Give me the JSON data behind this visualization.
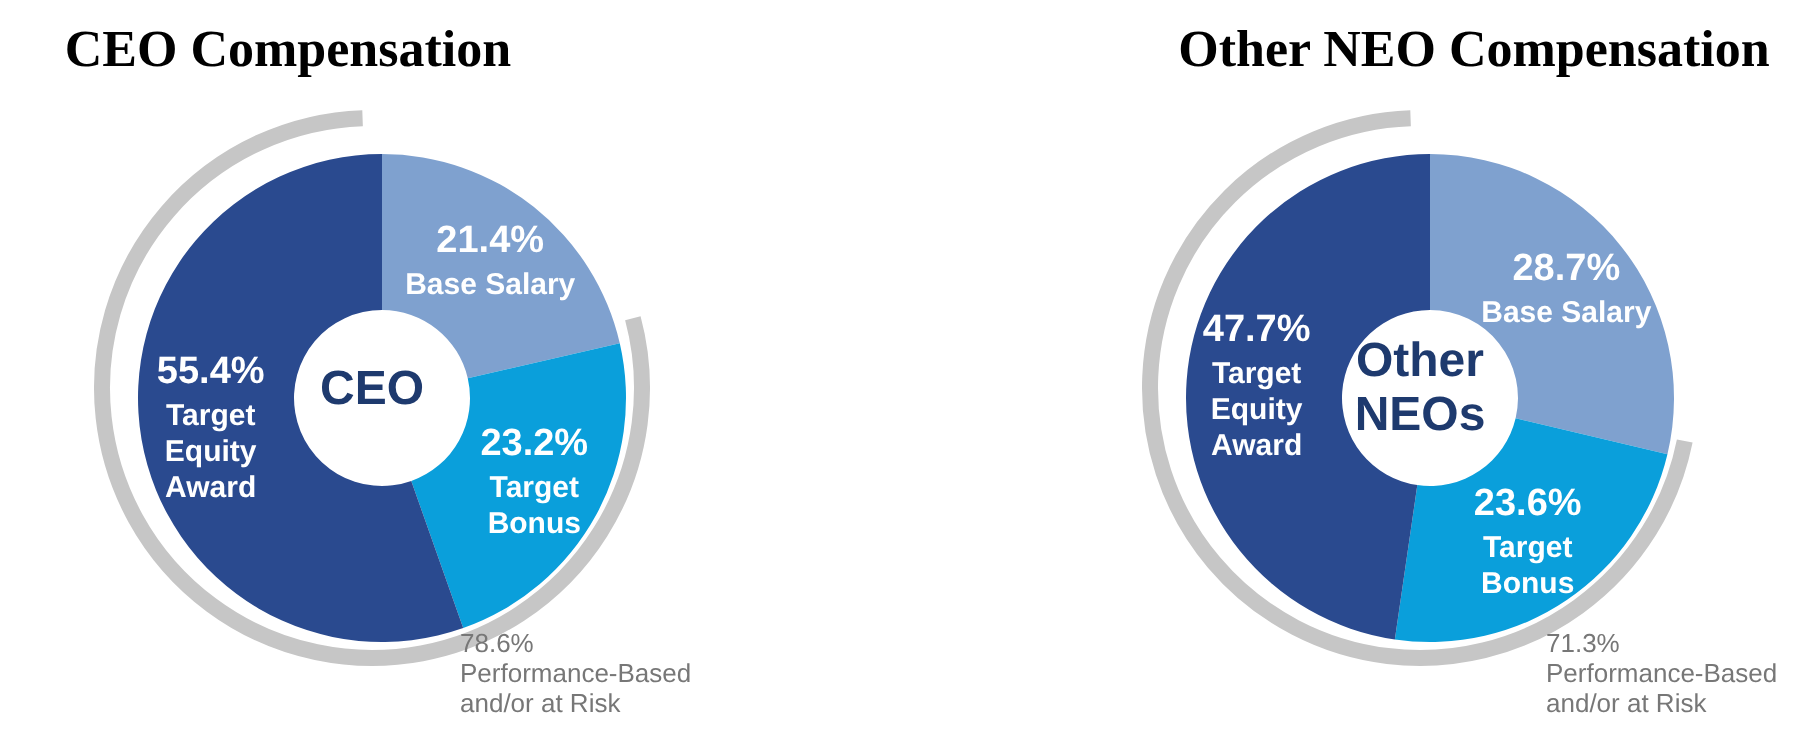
{
  "chart_data": [
    {
      "type": "donut",
      "title": "CEO Compensation",
      "categories": [
        "Base Salary",
        "Target Bonus",
        "Target Equity Award"
      ],
      "values": [
        21.4,
        23.2,
        55.4
      ],
      "colors": [
        "#7fa1cf",
        "#0a9fdb",
        "#2a4a8f"
      ],
      "value_labels": [
        "21.4%",
        "23.2%",
        "55.4%"
      ],
      "annotations": [
        "CEO",
        "78.6%\nPerformance-Based\nand/or at Risk"
      ]
    },
    {
      "type": "donut",
      "title": "Other NEO Compensation",
      "categories": [
        "Base Salary",
        "Target Bonus",
        "Target Equity Award"
      ],
      "values": [
        28.7,
        23.6,
        47.7
      ],
      "colors": [
        "#7fa1cf",
        "#0a9fdb",
        "#2a4a8f"
      ],
      "value_labels": [
        "28.7%",
        "23.6%",
        "47.7%"
      ],
      "annotations": [
        "Other\nNEOs",
        "71.3%\nPerformance-Based\nand/or at Risk"
      ]
    }
  ]
}
